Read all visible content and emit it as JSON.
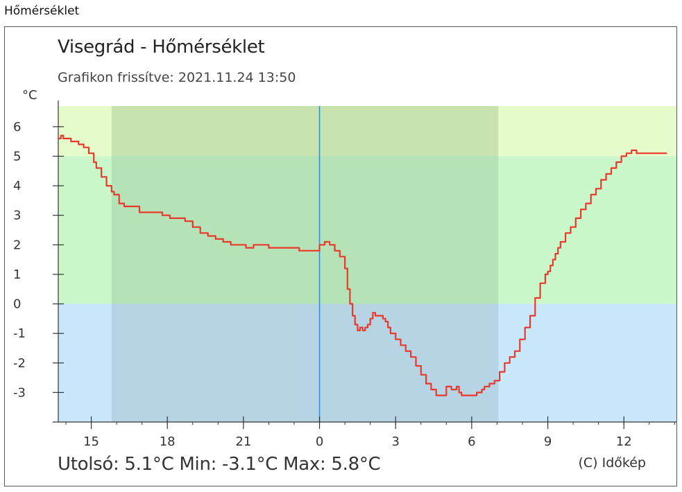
{
  "page": {
    "section_title": "Hőmérséklet"
  },
  "chart_data": {
    "type": "line",
    "title": "Visegrád - Hőmérséklet",
    "subtitle": "Grafikon frissítve: 2021.11.24 13:50",
    "ylabel": "°C",
    "yticks": [
      6,
      5,
      4,
      3,
      2,
      1,
      0,
      -1,
      -2,
      -3
    ],
    "ytick_labels": [
      "6",
      "5",
      "4",
      "3",
      "2",
      "1",
      "0",
      "-1",
      "-2",
      "-3"
    ],
    "ylim": [
      -4,
      6.7
    ],
    "xlim": [
      13.7,
      38.1
    ],
    "xticks": [
      15,
      18,
      21,
      24,
      27,
      30,
      33,
      36
    ],
    "xtick_labels": [
      "15",
      "18",
      "21",
      "0",
      "3",
      "6",
      "9",
      "12"
    ],
    "now_marker_x": 24,
    "night_band": [
      15.8,
      31.05
    ],
    "colors": {
      "line": "#e8392b",
      "now_marker": "#2f8fd8",
      "bg_warm": "#e6fbcc",
      "bg_mild": "#caf8ca",
      "bg_cold": "#c9e8fc",
      "night_warm": "#c8e2b0",
      "night_mild": "#b5e2b7",
      "night_cold": "#b7d4e4"
    },
    "series": [
      {
        "x": [
          13.7,
          13.8,
          13.9,
          14.0,
          14.1,
          14.2,
          14.3,
          14.5,
          14.7,
          14.9,
          15.1,
          15.2,
          15.4,
          15.6,
          15.8,
          15.9,
          16.1,
          16.3,
          16.6,
          16.9,
          17.2,
          17.5,
          17.8,
          18.1,
          18.4,
          18.7,
          19.0,
          19.3,
          19.6,
          19.9,
          20.2,
          20.5,
          20.8,
          21.1,
          21.4,
          21.6,
          21.8,
          22.0,
          22.3,
          22.6,
          22.9,
          23.2,
          23.5,
          23.8,
          24.0,
          24.2,
          24.4,
          24.6,
          24.8,
          25.0,
          25.1,
          25.2,
          25.3,
          25.4,
          25.5,
          25.6,
          25.7,
          25.8,
          25.9,
          26.0,
          26.1,
          26.2,
          26.3,
          26.4,
          26.5,
          26.6,
          26.7,
          26.8,
          27.0,
          27.2,
          27.4,
          27.6,
          27.8,
          28.0,
          28.2,
          28.4,
          28.6,
          28.8,
          29.0,
          29.2,
          29.4,
          29.5,
          29.6,
          29.7,
          29.8,
          29.9,
          30.0,
          30.1,
          30.2,
          30.3,
          30.4,
          30.5,
          30.7,
          30.9,
          31.1,
          31.3,
          31.5,
          31.7,
          31.9,
          32.1,
          32.3,
          32.5,
          32.7,
          32.9,
          33.0,
          33.1,
          33.2,
          33.3,
          33.4,
          33.5,
          33.7,
          33.9,
          34.1,
          34.3,
          34.5,
          34.7,
          34.9,
          35.1,
          35.3,
          35.5,
          35.7,
          35.9,
          36.1,
          36.3,
          36.5,
          36.7,
          36.9,
          37.1,
          37.3,
          37.5,
          37.7
        ],
        "y": [
          5.6,
          5.7,
          5.6,
          5.6,
          5.6,
          5.5,
          5.5,
          5.4,
          5.3,
          5.1,
          4.8,
          4.6,
          4.3,
          4.0,
          3.8,
          3.7,
          3.4,
          3.3,
          3.3,
          3.1,
          3.1,
          3.1,
          3.0,
          2.9,
          2.9,
          2.8,
          2.6,
          2.4,
          2.3,
          2.2,
          2.1,
          2.0,
          2.0,
          1.9,
          2.0,
          2.0,
          2.0,
          1.9,
          1.9,
          1.9,
          1.9,
          1.8,
          1.8,
          1.8,
          2.0,
          2.1,
          2.0,
          1.8,
          1.6,
          1.2,
          0.5,
          0.0,
          -0.4,
          -0.7,
          -0.9,
          -0.8,
          -0.9,
          -0.8,
          -0.7,
          -0.5,
          -0.3,
          -0.4,
          -0.4,
          -0.4,
          -0.5,
          -0.6,
          -0.8,
          -1.0,
          -1.2,
          -1.4,
          -1.6,
          -1.8,
          -2.1,
          -2.4,
          -2.7,
          -2.9,
          -3.1,
          -3.1,
          -2.8,
          -2.9,
          -2.8,
          -3.0,
          -3.1,
          -3.1,
          -3.1,
          -3.1,
          -3.1,
          -3.1,
          -3.0,
          -3.0,
          -2.9,
          -2.8,
          -2.7,
          -2.6,
          -2.3,
          -2.0,
          -1.8,
          -1.6,
          -1.2,
          -0.8,
          -0.4,
          0.2,
          0.7,
          1.0,
          1.1,
          1.3,
          1.5,
          1.7,
          1.9,
          2.1,
          2.4,
          2.6,
          2.9,
          3.2,
          3.4,
          3.7,
          3.9,
          4.2,
          4.4,
          4.6,
          4.8,
          5.0,
          5.1,
          5.2,
          5.1,
          5.1,
          5.1,
          5.1,
          5.1,
          5.1,
          5.1
        ]
      }
    ]
  },
  "footer": {
    "stats": "Utolsó: 5.1°C  Min: -3.1°C  Max: 5.8°C",
    "copyright": "(C) Időkép"
  }
}
